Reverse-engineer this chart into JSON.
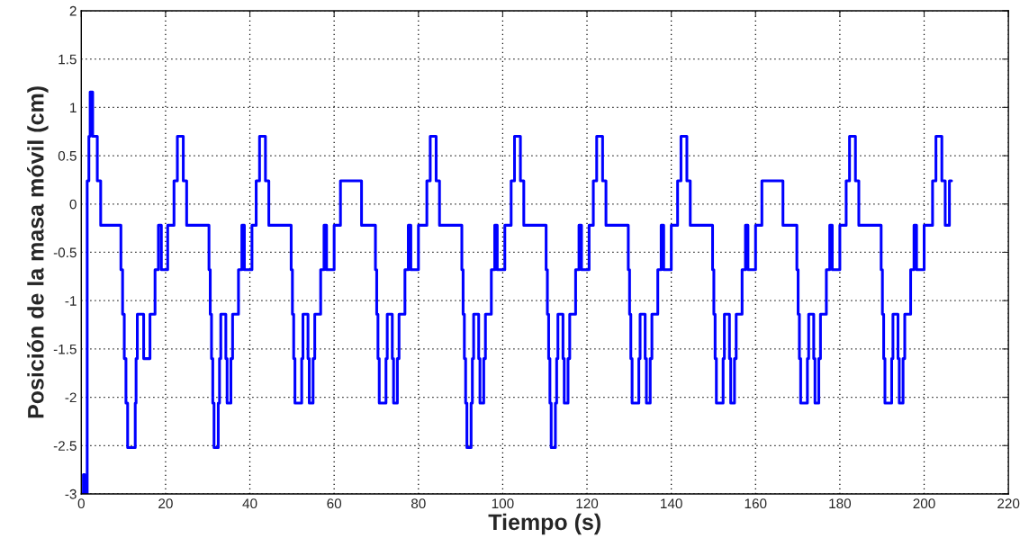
{
  "chart_data": {
    "type": "step",
    "xlabel": "Tiempo (s)",
    "ylabel": "Posición de la masa móvil (cm)",
    "xlim": [
      0,
      220
    ],
    "xticks": [
      0,
      20,
      40,
      60,
      80,
      100,
      120,
      140,
      160,
      180,
      200,
      220
    ],
    "ylim": [
      -3,
      2
    ],
    "yticks": [
      -3,
      -2.5,
      -2,
      -1.5,
      -1,
      -0.5,
      0,
      0.5,
      1,
      1.5,
      2
    ],
    "grid": true,
    "line_style": "solid",
    "marker": "none",
    "series": [
      {
        "color": "#0000ff",
        "x": [
          0,
          0.5,
          0.8,
          1.4,
          1.8,
          2.1,
          2.7,
          3.8,
          4.6,
          9.4,
          9.8,
          10.2,
          10.6,
          11.0,
          12.8,
          13.0,
          13.3,
          14.8,
          16.3,
          17.5,
          18.3,
          19.0,
          20.5,
          22.0,
          22.8,
          24.2,
          25.0,
          30.3,
          30.6,
          30.9,
          31.2,
          31.5,
          32.5,
          32.8,
          33.1,
          34.3,
          34.6,
          35.5,
          35.9,
          37.3,
          38.1,
          38.7,
          40.5,
          41.5,
          42.3,
          43.7,
          44.5,
          49.8,
          50.1,
          50.4,
          50.7,
          51.0,
          52.0,
          52.3,
          52.6,
          53.8,
          54.1,
          55.0,
          55.4,
          56.8,
          57.6,
          58.2,
          60.0,
          61.5,
          62.3,
          63.7,
          66.5,
          69.8,
          70.1,
          70.4,
          70.7,
          71.0,
          72.0,
          72.3,
          72.6,
          73.8,
          74.1,
          75.0,
          75.4,
          76.8,
          77.6,
          78.2,
          80.0,
          82.0,
          82.8,
          84.2,
          85.0,
          90.3,
          90.6,
          90.9,
          91.2,
          91.5,
          92.5,
          92.8,
          93.1,
          94.3,
          94.6,
          95.5,
          95.9,
          97.3,
          98.1,
          98.7,
          100.5,
          102.0,
          102.8,
          104.2,
          105.0,
          110.3,
          110.6,
          110.9,
          111.2,
          111.5,
          112.5,
          112.8,
          113.1,
          114.3,
          114.6,
          115.5,
          115.9,
          117.3,
          118.1,
          118.7,
          120.5,
          121.5,
          122.3,
          123.7,
          124.5,
          129.8,
          130.1,
          130.4,
          130.7,
          131.0,
          132.0,
          132.3,
          132.6,
          133.8,
          134.1,
          135.0,
          135.4,
          136.8,
          137.6,
          138.2,
          140.0,
          141.5,
          142.3,
          143.7,
          144.5,
          149.8,
          150.1,
          150.4,
          150.7,
          151.0,
          152.0,
          152.3,
          152.6,
          153.8,
          154.1,
          155.0,
          155.4,
          156.8,
          157.6,
          158.2,
          160.0,
          161.5,
          162.3,
          163.7,
          166.5,
          169.8,
          170.1,
          170.4,
          170.7,
          171.0,
          172.0,
          172.3,
          172.6,
          173.8,
          174.1,
          175.0,
          175.4,
          176.8,
          177.6,
          178.2,
          180.0,
          181.5,
          182.3,
          183.7,
          184.5,
          189.8,
          190.1,
          190.4,
          190.7,
          191.0,
          192.0,
          192.3,
          192.6,
          193.8,
          194.1,
          195.0,
          195.4,
          196.8,
          197.6,
          198.2,
          200.0,
          202.0,
          202.8,
          204.2,
          205.0,
          206.0,
          206.5
        ],
        "values": [
          -3,
          -2.8,
          -3,
          0.24,
          0.7,
          1.16,
          0.7,
          0.24,
          -0.22,
          -0.68,
          -1.14,
          -1.6,
          -2.06,
          -2.52,
          -2.06,
          -1.6,
          -1.14,
          -1.6,
          -1.14,
          -0.68,
          -0.22,
          -0.68,
          -0.22,
          0.24,
          0.7,
          0.24,
          -0.22,
          -0.68,
          -1.14,
          -1.6,
          -2.06,
          -2.52,
          -2.06,
          -1.6,
          -1.14,
          -1.6,
          -2.06,
          -1.6,
          -1.14,
          -0.68,
          -0.22,
          -0.68,
          -0.22,
          0.24,
          0.7,
          0.24,
          -0.22,
          -0.68,
          -1.14,
          -1.6,
          -2.06,
          -2.06,
          -2.06,
          -1.6,
          -1.14,
          -1.6,
          -2.06,
          -1.6,
          -1.14,
          -0.68,
          -0.22,
          -0.68,
          -0.22,
          0.24,
          0.24,
          0.24,
          -0.22,
          -0.68,
          -1.14,
          -1.6,
          -2.06,
          -2.06,
          -2.06,
          -1.6,
          -1.14,
          -1.6,
          -2.06,
          -1.6,
          -1.14,
          -0.68,
          -0.22,
          -0.68,
          -0.22,
          0.24,
          0.7,
          0.24,
          -0.22,
          -0.68,
          -1.14,
          -1.6,
          -2.06,
          -2.52,
          -2.06,
          -1.6,
          -1.14,
          -1.6,
          -2.06,
          -1.6,
          -1.14,
          -0.68,
          -0.22,
          -0.68,
          -0.22,
          0.24,
          0.7,
          0.24,
          -0.22,
          -0.68,
          -1.14,
          -1.6,
          -2.06,
          -2.52,
          -2.06,
          -1.6,
          -1.14,
          -1.6,
          -2.06,
          -1.6,
          -1.14,
          -0.68,
          -0.22,
          -0.68,
          -0.22,
          0.24,
          0.7,
          0.24,
          -0.22,
          -0.68,
          -1.14,
          -1.6,
          -2.06,
          -2.06,
          -2.06,
          -1.6,
          -1.14,
          -1.6,
          -2.06,
          -1.6,
          -1.14,
          -0.68,
          -0.22,
          -0.68,
          -0.22,
          0.24,
          0.7,
          0.24,
          -0.22,
          -0.68,
          -1.14,
          -1.6,
          -2.06,
          -2.06,
          -2.06,
          -1.6,
          -1.14,
          -1.6,
          -2.06,
          -1.6,
          -1.14,
          -0.68,
          -0.22,
          -0.68,
          -0.22,
          0.24,
          0.24,
          0.24,
          -0.22,
          -0.68,
          -1.14,
          -1.6,
          -2.06,
          -2.06,
          -2.06,
          -1.6,
          -1.14,
          -1.6,
          -2.06,
          -1.6,
          -1.14,
          -0.68,
          -0.22,
          -0.68,
          -0.22,
          0.24,
          0.7,
          0.24,
          -0.22,
          -0.68,
          -1.14,
          -1.6,
          -2.06,
          -2.06,
          -2.06,
          -1.6,
          -1.14,
          -1.6,
          -2.06,
          -1.6,
          -1.14,
          -0.68,
          -0.22,
          -0.68,
          -0.22,
          0.24,
          0.7,
          0.24,
          -0.22,
          0.24,
          0.24
        ]
      }
    ]
  }
}
